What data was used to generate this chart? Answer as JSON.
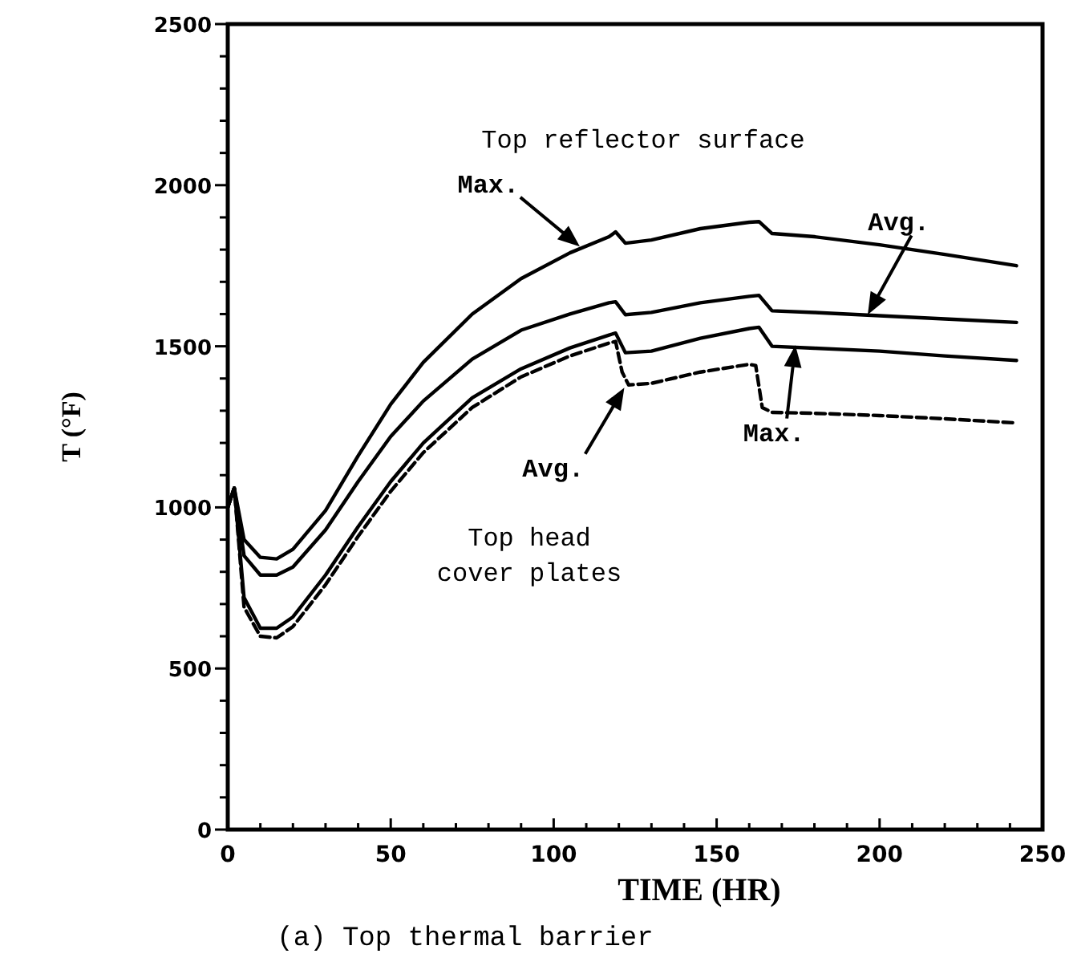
{
  "chart_data": {
    "type": "line",
    "title": "(a)  Top thermal barrier",
    "xlabel": "TIME (HR)",
    "ylabel": "T (°F)",
    "xlim": [
      0,
      250
    ],
    "ylim": [
      0,
      2500
    ],
    "xticks": [
      0,
      {
        "value": 10,
        "label": null
      },
      {
        "value": 20,
        "label": null
      },
      {
        "value": 30,
        "label": null
      },
      {
        "value": 40,
        "label": null
      },
      50,
      {
        "value": 60,
        "label": null
      },
      {
        "value": 70,
        "label": null
      },
      {
        "value": 80,
        "label": null
      },
      {
        "value": 90,
        "label": null
      },
      100,
      {
        "value": 110,
        "label": null
      },
      {
        "value": 120,
        "label": null
      },
      {
        "value": 130,
        "label": null
      },
      {
        "value": 140,
        "label": null
      },
      150,
      {
        "value": 160,
        "label": null
      },
      {
        "value": 170,
        "label": null
      },
      {
        "value": 180,
        "label": null
      },
      {
        "value": 190,
        "label": null
      },
      200,
      {
        "value": 210,
        "label": null
      },
      {
        "value": 220,
        "label": null
      },
      {
        "value": 230,
        "label": null
      },
      {
        "value": 240,
        "label": null
      },
      250
    ],
    "yticks": [
      0,
      {
        "value": 100,
        "label": null
      },
      {
        "value": 200,
        "label": null
      },
      {
        "value": 300,
        "label": null
      },
      {
        "value": 400,
        "label": null
      },
      500,
      {
        "value": 600,
        "label": null
      },
      {
        "value": 700,
        "label": null
      },
      {
        "value": 800,
        "label": null
      },
      {
        "value": 900,
        "label": null
      },
      1000,
      {
        "value": 1100,
        "label": null
      },
      {
        "value": 1200,
        "label": null
      },
      {
        "value": 1300,
        "label": null
      },
      {
        "value": 1400,
        "label": null
      },
      1500,
      {
        "value": 1600,
        "label": null
      },
      {
        "value": 1700,
        "label": null
      },
      {
        "value": 1800,
        "label": null
      },
      {
        "value": 1900,
        "label": null
      },
      2000,
      {
        "value": 2100,
        "label": null
      },
      {
        "value": 2200,
        "label": null
      },
      {
        "value": 2300,
        "label": null
      },
      {
        "value": 2400,
        "label": null
      },
      2500
    ],
    "grid": false,
    "marker": "none",
    "series": [
      {
        "color": "#000000",
        "line_style": "solid",
        "x": [
          0,
          2,
          5,
          10,
          15,
          20,
          30,
          40,
          50,
          60,
          75,
          90,
          105,
          117,
          119,
          122,
          130,
          145,
          160,
          163,
          167,
          180,
          200,
          220,
          242
        ],
        "values": [
          1000,
          1060,
          900,
          845,
          840,
          870,
          990,
          1160,
          1320,
          1450,
          1600,
          1710,
          1790,
          1840,
          1855,
          1820,
          1830,
          1865,
          1885,
          1887,
          1850,
          1840,
          1815,
          1785,
          1750
        ]
      },
      {
        "color": "#000000",
        "line_style": "solid",
        "x": [
          0,
          2,
          5,
          10,
          15,
          20,
          30,
          40,
          50,
          60,
          75,
          90,
          105,
          117,
          119,
          122,
          130,
          145,
          160,
          163,
          167,
          180,
          200,
          220,
          242
        ],
        "values": [
          1000,
          1060,
          850,
          790,
          790,
          815,
          930,
          1080,
          1220,
          1330,
          1460,
          1550,
          1600,
          1635,
          1638,
          1598,
          1605,
          1635,
          1655,
          1658,
          1610,
          1605,
          1595,
          1585,
          1574
        ]
      },
      {
        "color": "#000000",
        "line_style": "solid",
        "x": [
          0,
          2,
          5,
          10,
          15,
          20,
          30,
          40,
          50,
          60,
          75,
          90,
          105,
          117,
          119,
          122,
          130,
          145,
          160,
          163,
          167,
          180,
          200,
          220,
          242
        ],
        "values": [
          1000,
          1060,
          720,
          625,
          625,
          660,
          790,
          940,
          1080,
          1200,
          1340,
          1430,
          1495,
          1535,
          1541,
          1480,
          1485,
          1525,
          1555,
          1559,
          1500,
          1494,
          1485,
          1470,
          1456
        ]
      },
      {
        "color": "#000000",
        "line_style": "dashed",
        "x": [
          0,
          2,
          5,
          10,
          15,
          20,
          30,
          40,
          50,
          60,
          75,
          90,
          105,
          117,
          119,
          121,
          123,
          130,
          145,
          160,
          162,
          164,
          167,
          180,
          200,
          220,
          242
        ],
        "values": [
          1000,
          1060,
          690,
          600,
          595,
          630,
          760,
          910,
          1050,
          1170,
          1310,
          1405,
          1470,
          1510,
          1515,
          1420,
          1380,
          1385,
          1420,
          1444,
          1440,
          1310,
          1295,
          1292,
          1285,
          1275,
          1262
        ]
      }
    ],
    "annotations": [
      "Top reflector surface",
      {
        "text": "Max.",
        "x": 107,
        "y": 1818
      },
      {
        "text": "Avg.",
        "x": 197,
        "y": 1610
      },
      {
        "text": "Avg.",
        "x": 121,
        "y": 1360
      },
      {
        "text": "Max.",
        "x": 174,
        "y": 1490
      },
      "Top head cover plates"
    ]
  }
}
